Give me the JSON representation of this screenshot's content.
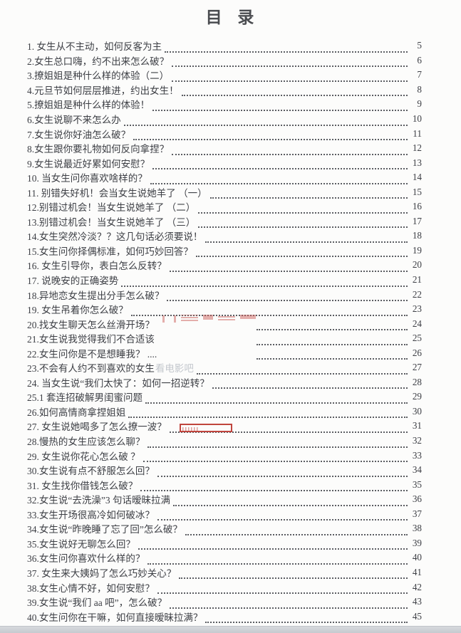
{
  "page": {
    "title": "目 录",
    "bg_color": "#fcfcfb",
    "text_color": "#3d3f45",
    "dot_color": "#5b5d62",
    "faded_text_color": "#c3c7cd",
    "annotation_red": "#c0453d",
    "watermark_red": "#cb605c"
  },
  "toc": {
    "items": [
      {
        "label": "1. 女生从不主动，如何反客为主",
        "page": "5"
      },
      {
        "label": "2.女生总口嗨，约不出来怎么破？",
        "page": "6"
      },
      {
        "label": "3.撩姐姐是种什么样的体验（二）",
        "page": "7"
      },
      {
        "label": "4.元旦节如何层层推进，约出女生！",
        "page": "8"
      },
      {
        "label": "5.撩姐姐是种什么样的体验！",
        "page": "9"
      },
      {
        "label": "6.女生说聊不来怎么办",
        "page": "10"
      },
      {
        "label": "7.女生说你好油怎么破？",
        "page": "11"
      },
      {
        "label": "8.女生跟你要礼物如何反向拿捏？",
        "page": "12"
      },
      {
        "label": "9.女生说最近好累如何安慰？",
        "page": "13"
      },
      {
        "label": "10. 当女生问你喜欢啥样的？",
        "page": "14"
      },
      {
        "label": "11. 别错失好机！会当女生说她羊了 （一）",
        "page": "15"
      },
      {
        "label": "12.别错过机会！当女生说她羊了 （二）",
        "page": "16"
      },
      {
        "label": "13.别错过机会！当女生说她羊了 （三）",
        "page": "17"
      },
      {
        "label": "14.女生突然冷淡？？这几句话必须要说！",
        "page": "18"
      },
      {
        "label": "15.女生问你择偶标准，如何巧妙回答？",
        "page": "19"
      },
      {
        "label": "16. 女生引导你，表白怎么反转？",
        "page": "20"
      },
      {
        "label": "17. 说晚安的正确姿势",
        "page": "21"
      },
      {
        "label": "18.异地恋女生提出分手怎么破？",
        "page": "22"
      },
      {
        "label": "19. 女生吊着你怎么破？",
        "page": "23"
      },
      {
        "label": "20.找女生聊天怎么丝滑开场？",
        "page": "24",
        "gap": true
      },
      {
        "label": "21.女生说我觉得我们不合适该",
        "page": "25",
        "gap": true
      },
      {
        "label": "22.女生问你是不是想睡我？ ....",
        "page": "26",
        "gap": true
      },
      {
        "label": "23.不会有人约不到喜欢的女生",
        "faded": "看电影吧",
        "page": "27"
      },
      {
        "label": "24. 当女生说“我们太快了：如何一招逆转？",
        "page": "28"
      },
      {
        "label": "25.1 套连招破解男闺蜜问题",
        "page": "29"
      },
      {
        "label": "26.如何高情商拿捏姐姐",
        "page": "30"
      },
      {
        "label": "27. 女生说她喝多了怎么撩一波？",
        "page": "31",
        "red_box": true
      },
      {
        "label": "28.慢热的女生应该怎么聊？",
        "page": "32"
      },
      {
        "label": "29. 女生说你花心怎么破 ？",
        "page": "33"
      },
      {
        "label": "30.女生说有点不舒服怎么回？",
        "page": "34"
      },
      {
        "label": "31. 女生找你借钱怎么破？",
        "page": "35"
      },
      {
        "label": "32.女生说“去洗澡”3 句话暧昧拉满",
        "page": "36"
      },
      {
        "label": "33.女生开场很高冷如何破冰？",
        "page": "37"
      },
      {
        "label": "34.女生说“昨晚睡了忘了回”怎么破？",
        "page": "38"
      },
      {
        "label": "35.女生说好无聊怎么回？",
        "page": "39"
      },
      {
        "label": "36.女生问你喜欢什么样的？",
        "page": "40"
      },
      {
        "label": "37. 女生来大姨妈了怎么巧妙关心？",
        "page": "41"
      },
      {
        "label": "38.女生心情不好，如何安慰？",
        "page": "42"
      },
      {
        "label": "39.女生说“我们 aa 吧”，怎么破？",
        "page": "43"
      },
      {
        "label": "40.女生问你在干嘛，如何直接暧昧拉满？",
        "page": "45"
      }
    ]
  }
}
